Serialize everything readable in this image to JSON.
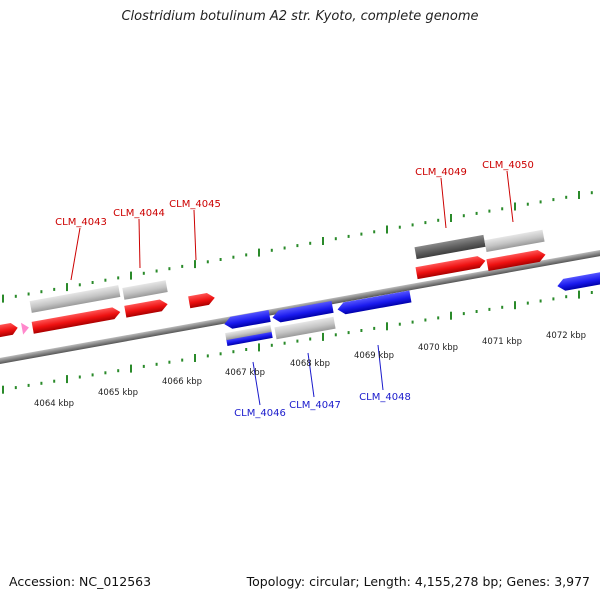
{
  "title": "Clostridium botulinum A2 str. Kyoto, complete genome",
  "accession_text": "Accession: NC_012563",
  "summary_text": "Topology: circular; Length: 4,155,278 bp; Genes: 3,977",
  "colors": {
    "forward_gene": "#ee1111",
    "reverse_gene": "#1a1aee",
    "pseudo_gene": "#c8c8c8",
    "dark_gene": "#6a6a6a",
    "backbone": "#8a8a8a",
    "tick": "#2a8a2a",
    "forward_label": "#cc0000",
    "reverse_label": "#1a1acc",
    "marker": "#ff88cc"
  },
  "kbp_labels": [
    "4064 kbp",
    "4065 kbp",
    "4066 kbp",
    "4067 kbp",
    "4068 kbp",
    "4069 kbp",
    "4070 kbp",
    "4071 kbp",
    "4072 kbp"
  ],
  "forward_genes": [
    "CLM_4043",
    "CLM_4044",
    "CLM_4045",
    "CLM_4049",
    "CLM_4050"
  ],
  "reverse_genes": [
    "CLM_4046",
    "CLM_4047",
    "CLM_4048"
  ]
}
